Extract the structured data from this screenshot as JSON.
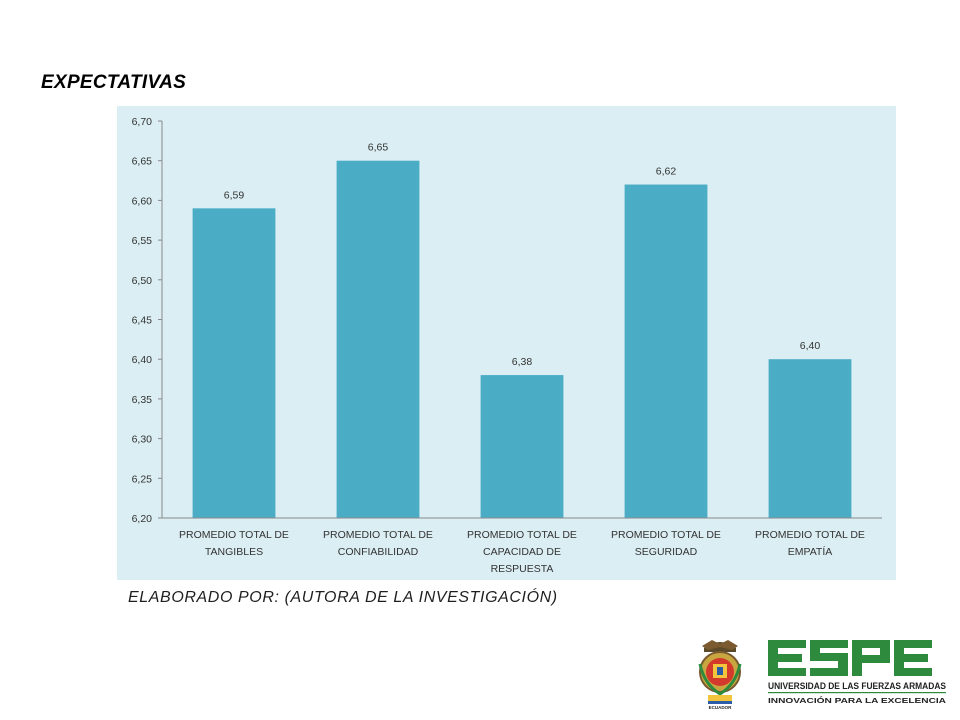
{
  "title": "EXPECTATIVAS",
  "credit": "ELABORADO POR: (AUTORA DE LA INVESTIGACIÓN)",
  "logo": {
    "name": "ESPE",
    "tagline_1": "UNIVERSIDAD DE LAS FUERZAS ARMADAS",
    "tagline_2": "INNOVACIÓN PARA LA EXCELENCIA",
    "seal_text": "ECUADOR"
  },
  "colors": {
    "bar": "#4bacc6",
    "panel_background": "#dbeef3",
    "logo_green": "#2e8b3e"
  },
  "chart_data": {
    "type": "bar",
    "categories": [
      [
        "PROMEDIO TOTAL DE",
        "TANGIBLES"
      ],
      [
        "PROMEDIO TOTAL DE",
        "CONFIABILIDAD"
      ],
      [
        "PROMEDIO TOTAL DE",
        "CAPACIDAD DE",
        "RESPUESTA"
      ],
      [
        "PROMEDIO TOTAL DE",
        "SEGURIDAD"
      ],
      [
        "PROMEDIO TOTAL DE",
        "EMPATÍA"
      ]
    ],
    "values": [
      6.59,
      6.65,
      6.38,
      6.62,
      6.4
    ],
    "value_labels": [
      "6,59",
      "6,65",
      "6,38",
      "6,62",
      "6,40"
    ],
    "ylim": [
      6.2,
      6.7
    ],
    "yticks": [
      6.2,
      6.25,
      6.3,
      6.35,
      6.4,
      6.45,
      6.5,
      6.55,
      6.6,
      6.65,
      6.7
    ],
    "ytick_labels": [
      "6,20",
      "6,25",
      "6,30",
      "6,35",
      "6,40",
      "6,45",
      "6,50",
      "6,55",
      "6,60",
      "6,65",
      "6,70"
    ],
    "grid": false,
    "legend": false
  }
}
